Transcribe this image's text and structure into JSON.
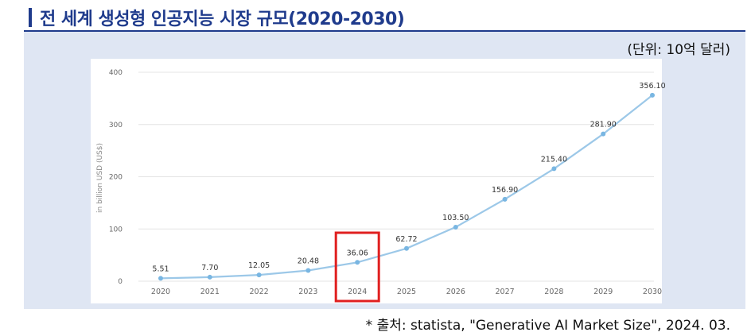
{
  "title": "전 세계 생성형 인공지능 시장 규모(2020-2030)",
  "unit": "(단위: 10억 달러)",
  "source": "* 출처: statista, \"Generative AI Market Size\", 2024. 03.",
  "colors": {
    "title": "#1f3b8c",
    "panel": "#dfe6f3",
    "line": "#9cc8e8",
    "point": "#79b6e2",
    "highlight": "#e02020"
  },
  "chart_data": {
    "type": "line",
    "ylabel": "in billion USD (US$)",
    "ylim": [
      0,
      400
    ],
    "yticks": [
      0,
      100,
      200,
      300,
      400
    ],
    "grid": true,
    "highlight_category": "2024",
    "categories": [
      "2020",
      "2021",
      "2022",
      "2023",
      "2024",
      "2025",
      "2026",
      "2027",
      "2028",
      "2029",
      "2030"
    ],
    "values": [
      5.51,
      7.7,
      12.05,
      20.48,
      36.06,
      62.72,
      103.5,
      156.9,
      215.4,
      281.9,
      356.1
    ],
    "labels": [
      "5.51",
      "7.70",
      "12.05",
      "20.48",
      "36.06",
      "62.72",
      "103.50",
      "156.90",
      "215.40",
      "281.90",
      "356.10"
    ]
  }
}
